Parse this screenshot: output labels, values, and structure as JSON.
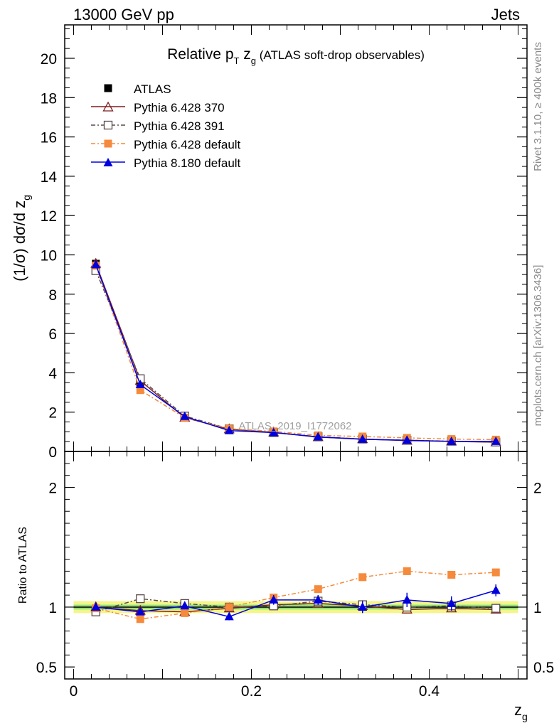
{
  "header": {
    "left": "13000 GeV pp",
    "right": "Jets",
    "side_top": "Rivet 3.1.10, ≥ 400k events",
    "side_bottom": "mcplots.cern.ch [arXiv:1306.3436]"
  },
  "chart_data": {
    "type": "line",
    "title": "Relative p_T z_g (ATLAS soft-drop observables)",
    "title_parts": {
      "main": "Relative p",
      "sub1": "T",
      "mid": " z",
      "sub2": "g",
      "tail": " (ATLAS soft-drop observables)"
    },
    "watermark": "ATLAS_2019_I1772062",
    "xlabel": "z",
    "xlabel_sub": "g",
    "ylabel": "(1/σ) dσ/d z",
    "ylabel_sub": "g",
    "ratio_ylabel": "Ratio to ATLAS",
    "xlim": [
      -0.01,
      0.51
    ],
    "ylim": [
      0,
      21.7
    ],
    "ratio_ylim": [
      0.4,
      2.3
    ],
    "x_ticks": [
      0,
      0.2,
      0.4
    ],
    "x_tick_labels": [
      "0",
      "0.2",
      "0.4"
    ],
    "y_ticks": [
      0,
      2,
      4,
      6,
      8,
      10,
      12,
      14,
      16,
      18,
      20
    ],
    "y_tick_labels": [
      "0",
      "2",
      "4",
      "6",
      "8",
      "10",
      "12",
      "14",
      "16",
      "18",
      "20"
    ],
    "ratio_ticks": [
      0.5,
      1,
      2
    ],
    "ratio_tick_labels": [
      "0.5",
      "1",
      "2"
    ],
    "x": [
      0.025,
      0.075,
      0.125,
      0.175,
      0.225,
      0.275,
      0.325,
      0.375,
      0.425,
      0.475
    ],
    "series": [
      {
        "name": "ATLAS",
        "color": "#000000",
        "marker": "square-filled",
        "dash": "",
        "values": [
          9.55,
          3.45,
          1.8,
          1.15,
          0.95,
          0.72,
          0.62,
          0.56,
          0.51,
          0.48
        ],
        "ratio": [
          1.0,
          1.0,
          1.0,
          1.0,
          1.0,
          1.0,
          1.0,
          1.0,
          1.0,
          1.0
        ]
      },
      {
        "name": "Pythia 6.428 370",
        "color": "#7f1d1d",
        "marker": "triangle-open",
        "dash": "",
        "values": [
          9.55,
          3.6,
          1.72,
          1.13,
          0.97,
          0.73,
          0.63,
          0.55,
          0.51,
          0.47
        ],
        "ratio": [
          1.0,
          0.97,
          0.96,
          0.99,
          1.02,
          1.03,
          1.01,
          0.98,
          0.99,
          0.98
        ]
      },
      {
        "name": "Pythia 6.428 391",
        "color": "#5b4a4a",
        "marker": "square-open",
        "dash": "6,3,2,3",
        "values": [
          9.2,
          3.7,
          1.8,
          1.15,
          0.96,
          0.75,
          0.63,
          0.57,
          0.52,
          0.48
        ],
        "ratio": [
          0.96,
          1.07,
          1.03,
          1.0,
          1.01,
          1.05,
          1.02,
          1.0,
          1.01,
          0.99
        ]
      },
      {
        "name": "Pythia 6.428 default",
        "color": "#f58a3c",
        "marker": "square-filled",
        "dash": "6,3,2,3",
        "values": [
          9.45,
          3.12,
          1.72,
          1.16,
          1.02,
          0.82,
          0.76,
          0.69,
          0.63,
          0.6
        ],
        "ratio": [
          0.99,
          0.9,
          0.95,
          1.0,
          1.08,
          1.15,
          1.25,
          1.3,
          1.27,
          1.29
        ]
      },
      {
        "name": "Pythia 8.180 default",
        "color": "#0000dd",
        "marker": "triangle-filled",
        "dash": "",
        "values": [
          9.5,
          3.4,
          1.78,
          1.06,
          0.96,
          0.74,
          0.62,
          0.57,
          0.51,
          0.51
        ],
        "ratio": [
          1.0,
          0.96,
          1.01,
          0.92,
          1.06,
          1.06,
          1.0,
          1.06,
          1.03,
          1.14
        ],
        "ratio_err": [
          0,
          0.02,
          0.02,
          0.03,
          0.04,
          0.04,
          0.05,
          0.06,
          0.06,
          0.05
        ]
      }
    ],
    "legend_position": "top-left",
    "band_inner": [
      0.02,
      0.02,
      0.02,
      0.02,
      0.02,
      0.02,
      0.02,
      0.02,
      0.02,
      0.02
    ],
    "band_outer": [
      0.05,
      0.05,
      0.05,
      0.05,
      0.05,
      0.05,
      0.05,
      0.05,
      0.05,
      0.05
    ],
    "grid": false
  }
}
